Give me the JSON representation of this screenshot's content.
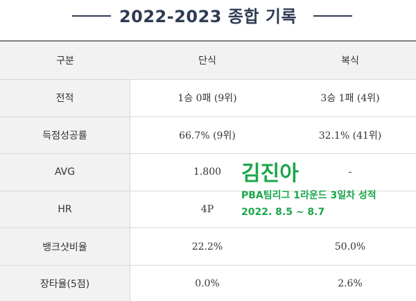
{
  "header": {
    "title": "2022-2023 종합 기록"
  },
  "table": {
    "columns": [
      "구분",
      "단식",
      "복식"
    ],
    "rows": [
      {
        "label": "전적",
        "single": "1승 0패 (9위)",
        "double": "3승 1패 (4위)"
      },
      {
        "label": "득점성공률",
        "single": "66.7% (9위)",
        "double": "32.1% (41위)"
      },
      {
        "label": "AVG",
        "single": "1.800",
        "double": "-"
      },
      {
        "label": "HR",
        "single": "4P",
        "double": ""
      },
      {
        "label": "뱅크샷비율",
        "single": "22.2%",
        "double": "50.0%"
      },
      {
        "label": "장타율(5점)",
        "single": "0.0%",
        "double": "2.6%"
      }
    ]
  },
  "overlay": {
    "name": "김진아",
    "line1": "PBA팀리그 1라운드 3일차 성적",
    "line2": "2022. 8.5 ~ 8.7",
    "color": "#1aa64a"
  },
  "colors": {
    "title": "#2f3b52",
    "header_bg": "#f2f2f2",
    "border": "#d8d8d8"
  }
}
